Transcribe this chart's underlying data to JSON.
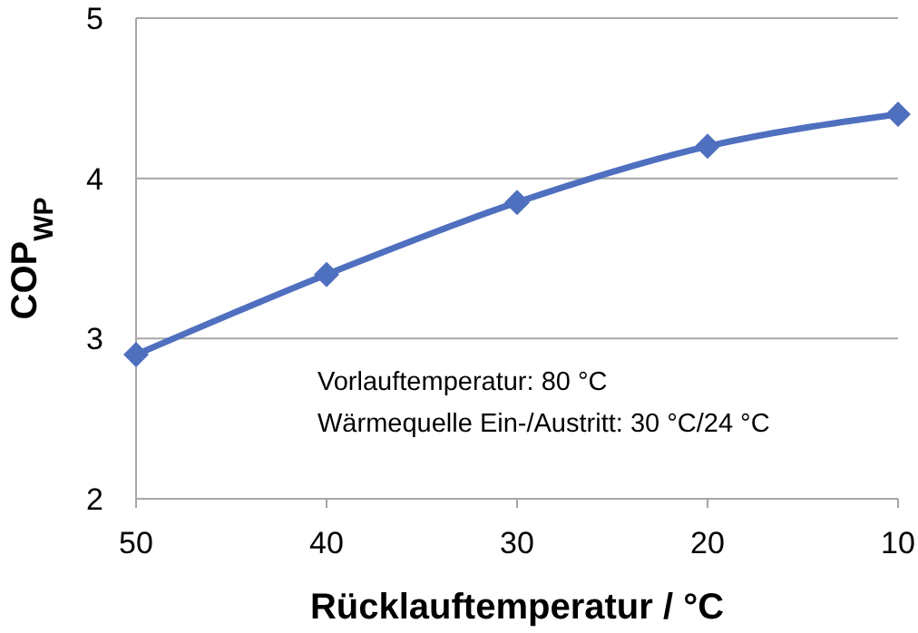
{
  "chart_data": {
    "type": "line",
    "xlabel": "Rücklauftemperatur / °C",
    "ylabel": "COP$_{WP}$",
    "x": [
      50,
      40,
      30,
      20,
      10
    ],
    "series": [
      {
        "color": "#4f6fbf",
        "values": [
          2.9,
          3.4,
          3.85,
          4.2,
          4.4
        ]
      }
    ],
    "xlim": [
      50,
      10
    ],
    "xticks": [
      50,
      40,
      30,
      20,
      10
    ],
    "ylim": [
      2,
      5
    ],
    "yticks": [
      2,
      3,
      4,
      5
    ],
    "grid": "y",
    "marker": "diamond",
    "line_style": "solid",
    "annotations": [
      "Vorlauftemperatur: 80 °C",
      "Wärmequelle Ein-/Austritt: 30 °C/24 °C"
    ]
  }
}
